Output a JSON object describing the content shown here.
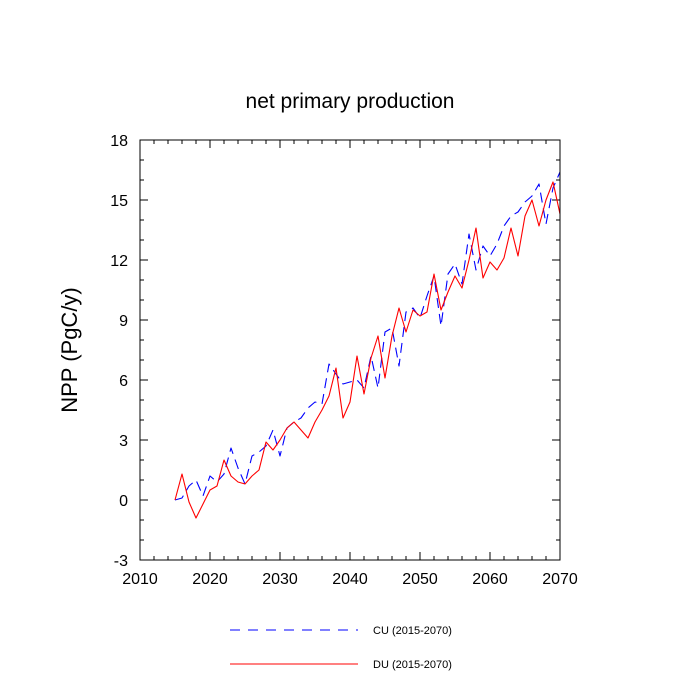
{
  "chart_data": {
    "type": "line",
    "title": "net primary production",
    "xlabel": "",
    "ylabel": "NPP  (PgC/y)",
    "xlim": [
      2010,
      2070
    ],
    "ylim": [
      -3,
      18
    ],
    "xticks": [
      2010,
      2020,
      2030,
      2040,
      2050,
      2060,
      2070
    ],
    "yticks": [
      -3,
      0,
      3,
      6,
      9,
      12,
      15,
      18
    ],
    "grid": false,
    "legend_position": "bottom",
    "x": [
      2015,
      2016,
      2017,
      2018,
      2019,
      2020,
      2021,
      2022,
      2023,
      2024,
      2025,
      2026,
      2027,
      2028,
      2029,
      2030,
      2031,
      2032,
      2033,
      2034,
      2035,
      2036,
      2037,
      2038,
      2039,
      2040,
      2041,
      2042,
      2043,
      2044,
      2045,
      2046,
      2047,
      2048,
      2049,
      2050,
      2051,
      2052,
      2053,
      2054,
      2055,
      2056,
      2057,
      2058,
      2059,
      2060,
      2061,
      2062,
      2063,
      2064,
      2065,
      2066,
      2067,
      2068,
      2069,
      2070
    ],
    "series": [
      {
        "name": "CU (2015-2070)",
        "color": "#0000ff",
        "dash": "dashed",
        "values": [
          0.0,
          0.1,
          0.7,
          1.0,
          0.2,
          1.2,
          0.9,
          1.3,
          2.6,
          1.6,
          0.8,
          2.2,
          2.4,
          2.7,
          3.5,
          2.2,
          3.6,
          3.9,
          4.1,
          4.6,
          4.9,
          4.8,
          6.8,
          6.3,
          5.8,
          5.9,
          6.0,
          5.6,
          7.2,
          5.6,
          8.4,
          8.6,
          6.7,
          9.4,
          9.6,
          9.1,
          10.2,
          11.2,
          8.7,
          11.3,
          11.8,
          10.8,
          13.3,
          11.5,
          12.7,
          12.2,
          12.8,
          13.7,
          14.2,
          14.4,
          14.9,
          15.2,
          15.8,
          13.8,
          15.6,
          16.4
        ]
      },
      {
        "name": "DU (2015-2070)",
        "color": "#ff0000",
        "dash": "solid",
        "values": [
          0.0,
          1.3,
          -0.1,
          -0.9,
          -0.2,
          0.5,
          0.7,
          2.0,
          1.2,
          0.9,
          0.8,
          1.2,
          1.5,
          2.9,
          2.5,
          3.0,
          3.6,
          3.9,
          3.5,
          3.1,
          3.9,
          4.5,
          5.2,
          6.6,
          4.1,
          4.9,
          7.2,
          5.3,
          7.1,
          8.2,
          6.1,
          8.2,
          9.6,
          8.4,
          9.5,
          9.2,
          9.4,
          11.3,
          9.5,
          10.4,
          11.2,
          10.6,
          12.0,
          13.6,
          11.1,
          11.9,
          11.5,
          12.1,
          13.6,
          12.2,
          14.2,
          15.0,
          13.7,
          15.0,
          15.9,
          14.3
        ]
      }
    ]
  }
}
